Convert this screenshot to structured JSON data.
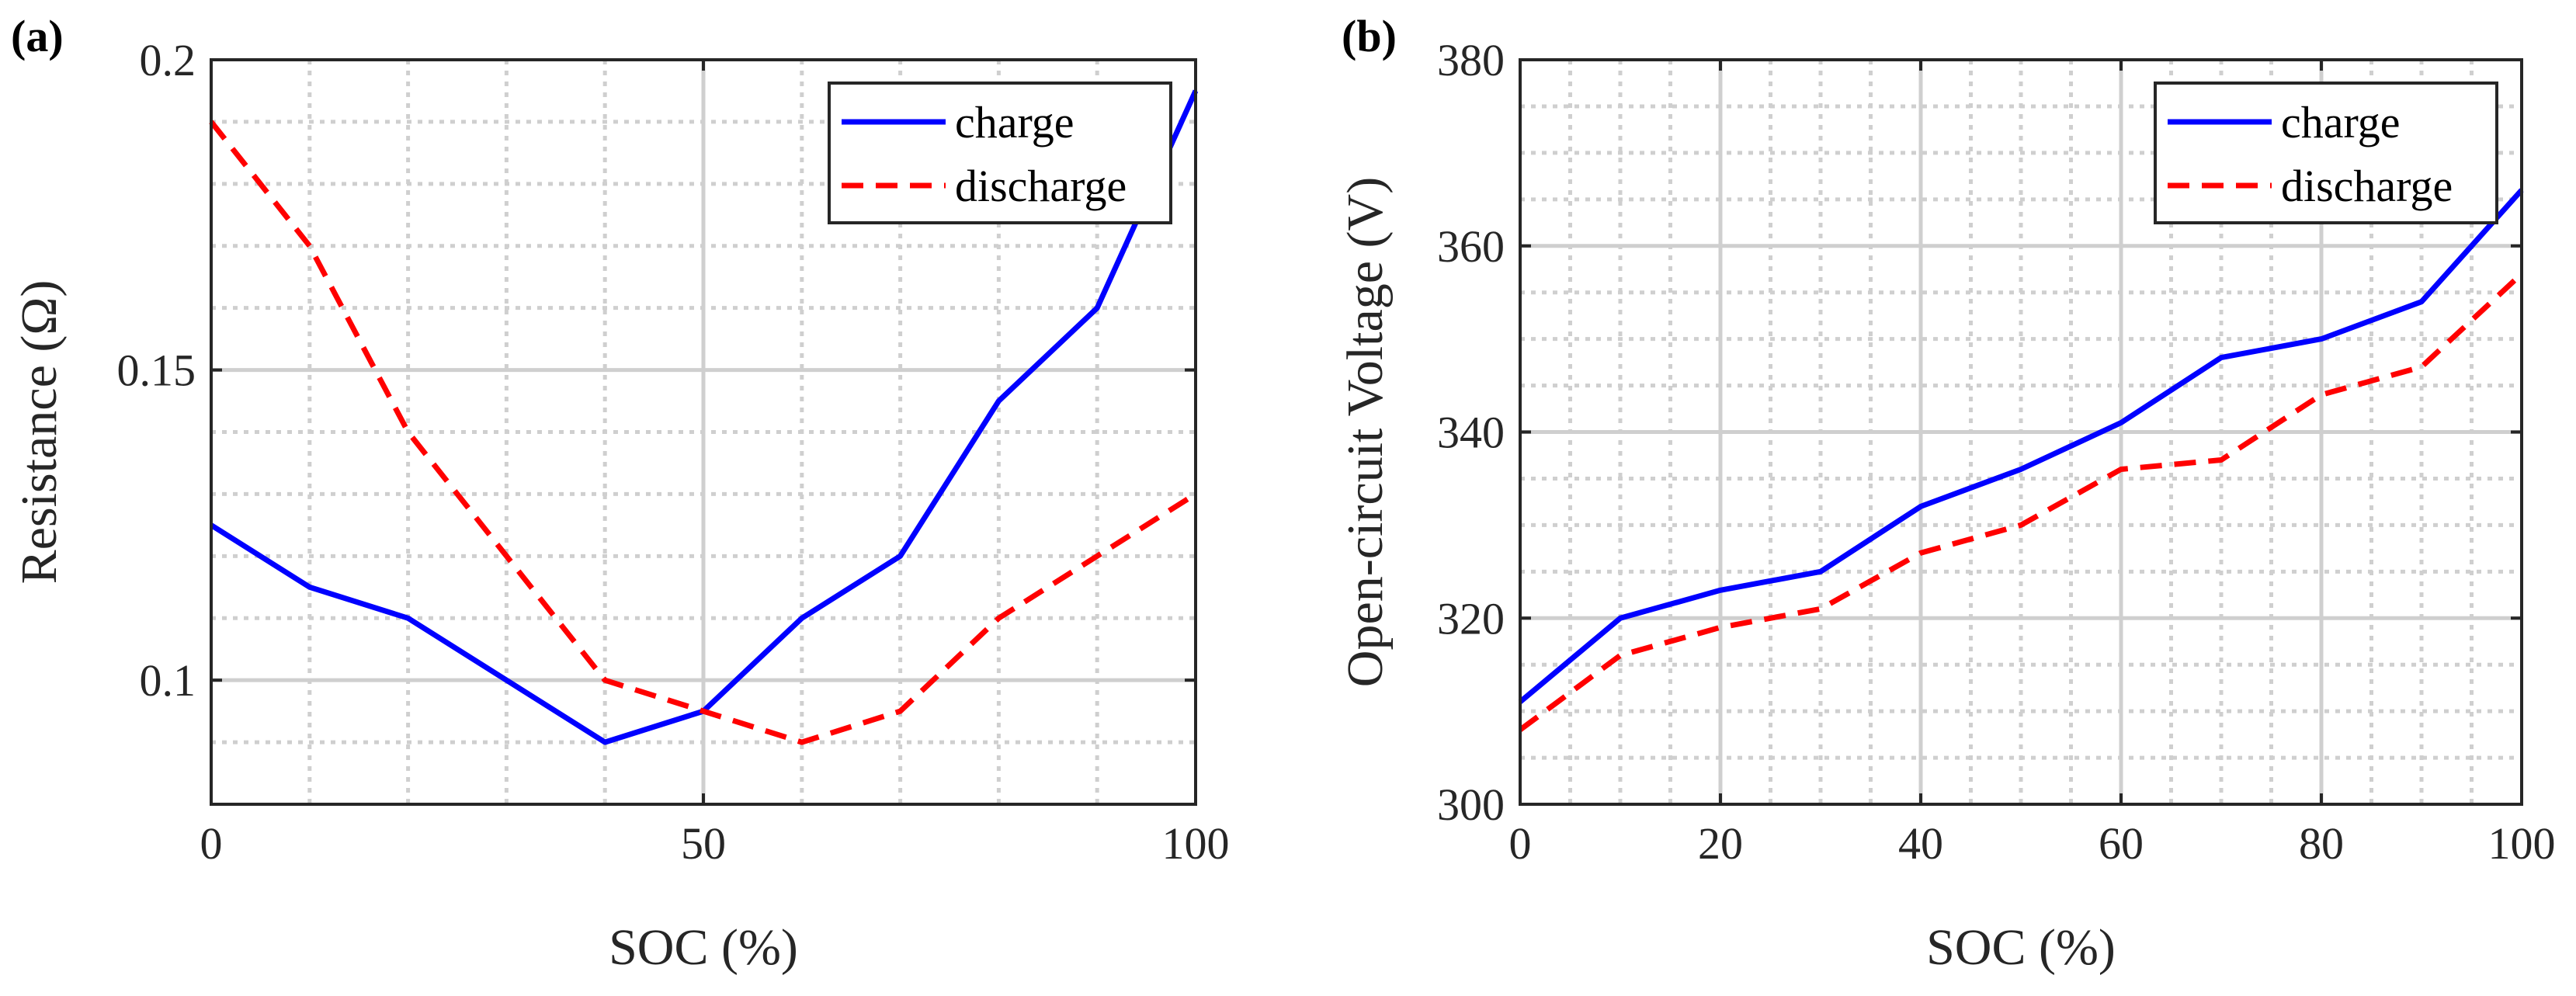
{
  "chart_data": [
    {
      "type": "line",
      "panel_label": "(a)",
      "title": "",
      "xlabel": "SOC (%)",
      "ylabel": "Resistance (Ω)",
      "xlim": [
        0,
        100
      ],
      "ylim": [
        0.08,
        0.2
      ],
      "xticks": [
        0,
        50,
        100
      ],
      "xtick_labels": [
        "0",
        "50",
        "100"
      ],
      "yticks": [
        0.1,
        0.15,
        0.2
      ],
      "ytick_labels": [
        "0.1",
        "0.15",
        "0.2"
      ],
      "x_minor_step": 10,
      "y_minor_step": 0.01,
      "grid": true,
      "legend_position": "top-right",
      "x": [
        0,
        10,
        20,
        30,
        40,
        50,
        60,
        70,
        80,
        90,
        100
      ],
      "series": [
        {
          "name": "charge",
          "style": "solid",
          "color": "#0000ff",
          "values": [
            0.125,
            0.115,
            0.11,
            0.1,
            0.09,
            0.095,
            0.11,
            0.12,
            0.145,
            0.16,
            0.195
          ]
        },
        {
          "name": "discharge",
          "style": "dashed",
          "color": "#ff0000",
          "values": [
            0.19,
            0.17,
            0.14,
            0.12,
            0.1,
            0.095,
            0.09,
            0.095,
            0.11,
            0.12,
            0.13
          ]
        }
      ]
    },
    {
      "type": "line",
      "panel_label": "(b)",
      "title": "",
      "xlabel": "SOC (%)",
      "ylabel": "Open-circuit Voltage (V)",
      "xlim": [
        0,
        100
      ],
      "ylim": [
        300,
        380
      ],
      "xticks": [
        0,
        20,
        40,
        60,
        80,
        100
      ],
      "xtick_labels": [
        "0",
        "20",
        "40",
        "60",
        "80",
        "100"
      ],
      "yticks": [
        300,
        320,
        340,
        360,
        380
      ],
      "ytick_labels": [
        "300",
        "320",
        "340",
        "360",
        "380"
      ],
      "x_minor_step": 5,
      "y_minor_step": 5,
      "grid": true,
      "legend_position": "top-right",
      "x": [
        0,
        10,
        20,
        30,
        40,
        50,
        60,
        70,
        80,
        90,
        100
      ],
      "series": [
        {
          "name": "charge",
          "style": "solid",
          "color": "#0000ff",
          "values": [
            311,
            320,
            323,
            325,
            332,
            336,
            341,
            348,
            350,
            354,
            366
          ]
        },
        {
          "name": "discharge",
          "style": "dashed",
          "color": "#ff0000",
          "values": [
            308,
            316,
            319,
            321,
            327,
            330,
            336,
            337,
            344,
            347,
            357
          ]
        }
      ]
    }
  ]
}
